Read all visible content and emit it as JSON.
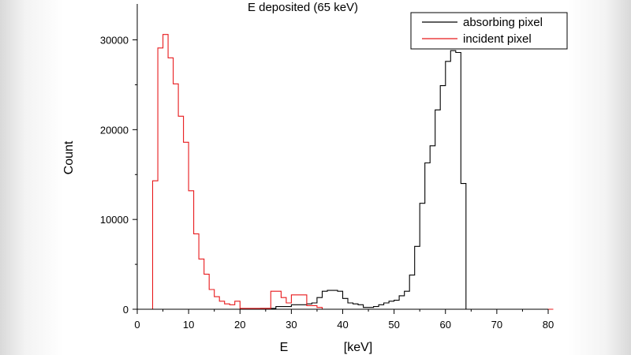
{
  "chart_data": {
    "type": "histogram-step",
    "title": "E deposited (65 keV)",
    "xlabel": "E",
    "xunit": "[keV]",
    "ylabel": "Count",
    "xlim": [
      0,
      80
    ],
    "ylim": [
      0,
      34000
    ],
    "xticks": [
      0,
      10,
      20,
      30,
      40,
      50,
      60,
      70,
      80
    ],
    "yticks": [
      0,
      10000,
      20000,
      30000
    ],
    "bin_width": 1,
    "legend_position": "top-right",
    "series": [
      {
        "name": "absorbing pixel",
        "color": "#000000",
        "x": [
          0,
          2,
          24,
          27,
          30,
          32,
          33,
          34,
          35,
          36,
          37,
          38,
          39,
          40,
          41,
          42,
          43,
          44,
          45,
          46,
          47,
          48,
          49,
          50,
          51,
          52,
          53,
          54,
          55,
          56,
          57,
          58,
          59,
          60,
          61,
          62,
          63,
          64
        ],
        "values": [
          0,
          0,
          100,
          300,
          500,
          500,
          600,
          700,
          1300,
          2000,
          2100,
          2100,
          2000,
          1200,
          700,
          600,
          500,
          200,
          200,
          300,
          500,
          700,
          900,
          1000,
          1500,
          2000,
          3800,
          7000,
          11800,
          16300,
          18200,
          22200,
          24900,
          27600,
          28800,
          28600,
          14000,
          0
        ]
      },
      {
        "name": "incident pixel",
        "color": "#e8191b",
        "x": [
          0,
          2,
          3,
          4,
          5,
          6,
          7,
          8,
          9,
          10,
          11,
          12,
          13,
          14,
          15,
          16,
          17,
          18,
          19,
          20,
          24,
          26,
          28,
          29,
          30,
          33,
          35,
          36,
          80
        ],
        "values": [
          0,
          0,
          14300,
          29100,
          30600,
          28000,
          25100,
          21500,
          18600,
          13200,
          8400,
          5600,
          3900,
          2200,
          1400,
          900,
          600,
          500,
          900,
          100,
          100,
          2000,
          1300,
          700,
          1600,
          400,
          200,
          0,
          0
        ]
      }
    ]
  }
}
